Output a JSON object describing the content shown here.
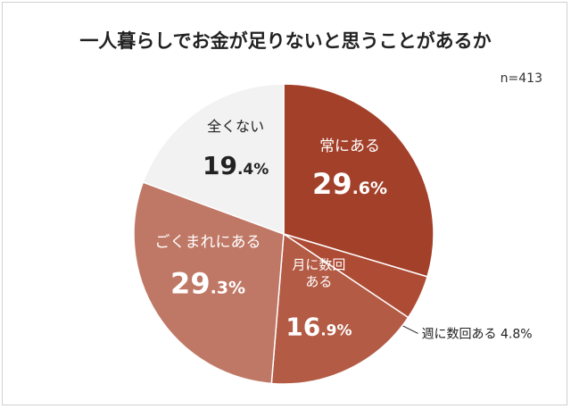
{
  "chart_data": {
    "type": "pie",
    "title": "一人暮らしでお金が足りないと思うことがあるか",
    "note": "n=413",
    "start_angle_deg": 0,
    "direction": "clockwise",
    "slices": [
      {
        "label": "常にある",
        "value": 29.6,
        "int_part": "29",
        "dec_part": ".6%",
        "color": "#a3402a",
        "text_color": "#ffffff"
      },
      {
        "label": "週に数回ある",
        "value": 4.8,
        "value_text": "4.8%",
        "color": "#ae4b35",
        "text_color": "#222222"
      },
      {
        "label": "月に数回ある",
        "value": 16.9,
        "int_part": "16",
        "dec_part": ".9%",
        "color": "#b35b45",
        "text_color": "#ffffff"
      },
      {
        "label": "ごくまれにある",
        "value": 29.3,
        "int_part": "29",
        "dec_part": ".3%",
        "color": "#c07866",
        "text_color": "#ffffff"
      },
      {
        "label": "全くない",
        "value": 19.4,
        "int_part": "19",
        "dec_part": ".4%",
        "color": "#f2f2f2",
        "text_color": "#222222"
      }
    ]
  }
}
